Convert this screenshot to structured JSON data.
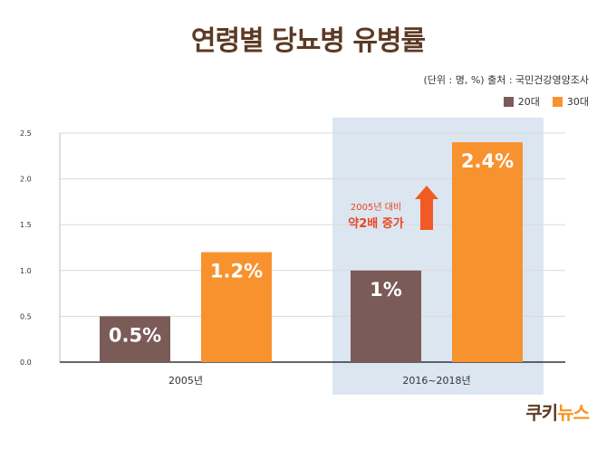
{
  "title": "연령별 당뇨병 유병률",
  "source": "(단위 : 명, %)   출처 : 국민건강영양조사",
  "legend": {
    "series_20": "20대",
    "series_30": "30대"
  },
  "annotation": {
    "line1": "2005년 대비",
    "line2": "약2배 증가"
  },
  "logo": {
    "part1": "쿠키",
    "part2": "뉴스"
  },
  "colors": {
    "s20": "#7b5b57",
    "s30": "#f7922f",
    "highlight": "#dce6f1",
    "title": "#5c3a24",
    "arrow": "#f15a24"
  },
  "chart_data": {
    "type": "bar",
    "categories": [
      "2005년",
      "2016~2018년"
    ],
    "series": [
      {
        "name": "20대",
        "values": [
          0.5,
          1.0
        ],
        "labels": [
          "0.5%",
          "1%"
        ]
      },
      {
        "name": "30대",
        "values": [
          1.2,
          2.4
        ],
        "labels": [
          "1.2%",
          "2.4%"
        ]
      }
    ],
    "ylim": [
      0,
      2.5
    ],
    "yticks": [
      "0.0",
      "0.5",
      "1.0",
      "1.5",
      "2.0",
      "2.5"
    ],
    "grid": true,
    "legend_position": "top-right",
    "highlighted_category": "2016~2018년"
  }
}
